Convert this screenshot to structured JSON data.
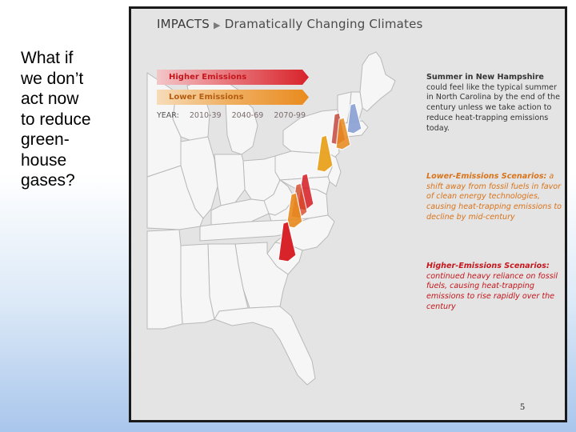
{
  "slide": {
    "question": "What if we don’t act now to reduce green-house gases?",
    "question_lines": [
      "What if",
      "we don’t",
      "act now",
      "to reduce",
      "green-",
      "house",
      "gases?"
    ],
    "page_number": "5"
  },
  "panel": {
    "section": "IMPACTS",
    "title": "Dramatically Changing Climates",
    "legend": {
      "higher_label": "Higher Emissions",
      "lower_label": "Lower Emissions",
      "year_prefix": "YEAR:",
      "years": [
        "2010-39",
        "2040-69",
        "2070-99"
      ]
    },
    "notes": {
      "main_bold": "Summer in New Hampshire",
      "main_rest": " could feel like the typical summer in North Carolina by the end of the century unless we take action to reduce heat-trapping emissions today.",
      "lower_bold": "Lower-Emissions Scenarios:",
      "lower_rest": " a shift away from fossil fuels in favor of clean energy technologies, causing heat-trapping emissions to decline by mid-century",
      "higher_bold": "Higher-Emissions Scenarios:",
      "higher_rest": " continued heavy reliance on fossil fuels, causing heat-trapping emissions to rise rapidly over the century"
    },
    "colors": {
      "higher": "#d8232a",
      "lower": "#e98a1e",
      "present": "#8fa4d6",
      "panel_bg": "#e4e4e4"
    },
    "icons": {
      "arrow": "arrow-right-icon",
      "nh_shape": "new-hampshire-outline"
    }
  }
}
